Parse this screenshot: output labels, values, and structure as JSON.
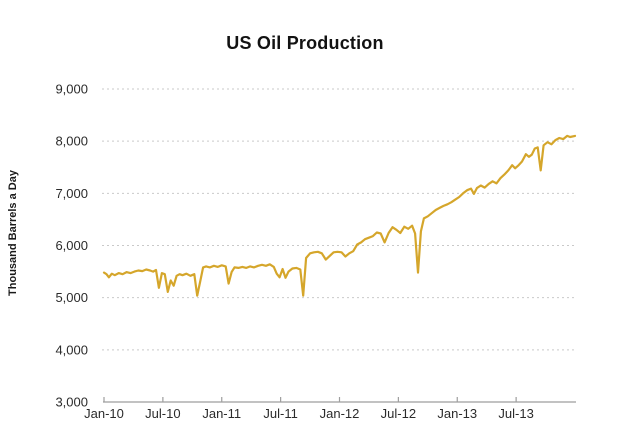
{
  "chart_data": {
    "type": "line",
    "title": "US Oil Production",
    "ylabel": "Thousand Barrels a Day",
    "xlabel": "",
    "legend": "none",
    "grid": "horizontal-dashed",
    "x_unit": "months since Jan-2010",
    "xlim": [
      0,
      48
    ],
    "ylim": [
      3000,
      9000
    ],
    "x_tick_positions": [
      0,
      6,
      12,
      18,
      24,
      30,
      36,
      42
    ],
    "x_tick_labels": [
      "Jan-10",
      "Jul-10",
      "Jan-11",
      "Jul-11",
      "Jan-12",
      "Jul-12",
      "Jan-13",
      "Jul-13"
    ],
    "y_tick_values": [
      3000,
      4000,
      5000,
      6000,
      7000,
      8000,
      9000
    ],
    "y_tick_labels": [
      "3,000",
      "4,000",
      "5,000",
      "6,000",
      "7,000",
      "8,000",
      "9,000"
    ],
    "line_color": "#D5A62B",
    "grid_color": "#C9C9C9",
    "axis_color": "#9E9E9E",
    "series": [
      {
        "name": "US Oil Production",
        "unit": "thousand barrels per day",
        "points": [
          [
            0.0,
            5480
          ],
          [
            0.25,
            5450
          ],
          [
            0.5,
            5390
          ],
          [
            0.8,
            5460
          ],
          [
            1.1,
            5430
          ],
          [
            1.5,
            5470
          ],
          [
            1.9,
            5450
          ],
          [
            2.3,
            5490
          ],
          [
            2.7,
            5470
          ],
          [
            3.1,
            5500
          ],
          [
            3.5,
            5520
          ],
          [
            3.9,
            5510
          ],
          [
            4.3,
            5540
          ],
          [
            4.7,
            5520
          ],
          [
            5.0,
            5500
          ],
          [
            5.3,
            5530
          ],
          [
            5.6,
            5190
          ],
          [
            5.9,
            5470
          ],
          [
            6.2,
            5450
          ],
          [
            6.5,
            5110
          ],
          [
            6.8,
            5330
          ],
          [
            7.1,
            5230
          ],
          [
            7.4,
            5420
          ],
          [
            7.7,
            5450
          ],
          [
            8.0,
            5430
          ],
          [
            8.4,
            5460
          ],
          [
            8.8,
            5420
          ],
          [
            9.2,
            5450
          ],
          [
            9.5,
            5040
          ],
          [
            9.8,
            5310
          ],
          [
            10.1,
            5580
          ],
          [
            10.4,
            5600
          ],
          [
            10.8,
            5580
          ],
          [
            11.2,
            5610
          ],
          [
            11.6,
            5590
          ],
          [
            12.0,
            5620
          ],
          [
            12.4,
            5600
          ],
          [
            12.7,
            5270
          ],
          [
            13.0,
            5490
          ],
          [
            13.3,
            5580
          ],
          [
            13.7,
            5570
          ],
          [
            14.1,
            5590
          ],
          [
            14.5,
            5570
          ],
          [
            14.9,
            5600
          ],
          [
            15.3,
            5580
          ],
          [
            15.7,
            5610
          ],
          [
            16.1,
            5630
          ],
          [
            16.5,
            5610
          ],
          [
            16.9,
            5640
          ],
          [
            17.3,
            5590
          ],
          [
            17.6,
            5460
          ],
          [
            17.9,
            5390
          ],
          [
            18.2,
            5550
          ],
          [
            18.5,
            5380
          ],
          [
            18.8,
            5500
          ],
          [
            19.2,
            5560
          ],
          [
            19.6,
            5570
          ],
          [
            20.0,
            5540
          ],
          [
            20.3,
            5040
          ],
          [
            20.6,
            5760
          ],
          [
            21.0,
            5850
          ],
          [
            21.4,
            5870
          ],
          [
            21.8,
            5880
          ],
          [
            22.2,
            5850
          ],
          [
            22.6,
            5730
          ],
          [
            23.0,
            5800
          ],
          [
            23.4,
            5870
          ],
          [
            23.8,
            5880
          ],
          [
            24.2,
            5870
          ],
          [
            24.6,
            5790
          ],
          [
            25.0,
            5850
          ],
          [
            25.4,
            5890
          ],
          [
            25.8,
            6020
          ],
          [
            26.2,
            6060
          ],
          [
            26.6,
            6120
          ],
          [
            27.0,
            6150
          ],
          [
            27.4,
            6180
          ],
          [
            27.8,
            6250
          ],
          [
            28.2,
            6230
          ],
          [
            28.6,
            6060
          ],
          [
            29.0,
            6240
          ],
          [
            29.4,
            6350
          ],
          [
            29.8,
            6300
          ],
          [
            30.2,
            6240
          ],
          [
            30.6,
            6360
          ],
          [
            31.0,
            6320
          ],
          [
            31.4,
            6380
          ],
          [
            31.7,
            6230
          ],
          [
            32.0,
            5480
          ],
          [
            32.3,
            6270
          ],
          [
            32.6,
            6520
          ],
          [
            33.0,
            6560
          ],
          [
            33.4,
            6620
          ],
          [
            33.8,
            6680
          ],
          [
            34.2,
            6720
          ],
          [
            34.6,
            6760
          ],
          [
            35.0,
            6790
          ],
          [
            35.4,
            6830
          ],
          [
            35.8,
            6880
          ],
          [
            36.2,
            6930
          ],
          [
            36.6,
            7000
          ],
          [
            37.0,
            7060
          ],
          [
            37.4,
            7090
          ],
          [
            37.7,
            6990
          ],
          [
            38.0,
            7100
          ],
          [
            38.4,
            7150
          ],
          [
            38.8,
            7110
          ],
          [
            39.2,
            7180
          ],
          [
            39.6,
            7230
          ],
          [
            40.0,
            7190
          ],
          [
            40.4,
            7290
          ],
          [
            40.8,
            7360
          ],
          [
            41.2,
            7440
          ],
          [
            41.6,
            7540
          ],
          [
            41.9,
            7480
          ],
          [
            42.2,
            7530
          ],
          [
            42.6,
            7610
          ],
          [
            43.0,
            7750
          ],
          [
            43.3,
            7700
          ],
          [
            43.6,
            7740
          ],
          [
            43.9,
            7860
          ],
          [
            44.2,
            7880
          ],
          [
            44.5,
            7440
          ],
          [
            44.8,
            7920
          ],
          [
            45.2,
            7980
          ],
          [
            45.6,
            7940
          ],
          [
            46.0,
            8020
          ],
          [
            46.4,
            8060
          ],
          [
            46.8,
            8040
          ],
          [
            47.2,
            8100
          ],
          [
            47.5,
            8080
          ],
          [
            48.0,
            8100
          ]
        ]
      }
    ]
  }
}
